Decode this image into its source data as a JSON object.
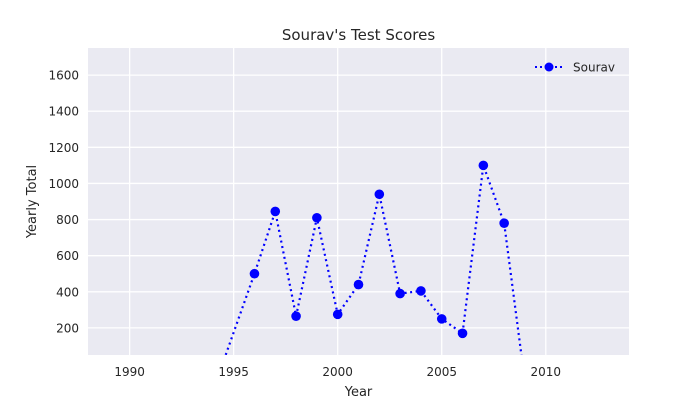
{
  "chart_data": {
    "type": "line",
    "title": "Sourav's Test Scores",
    "xlabel": "Year",
    "ylabel": "Yearly Total",
    "xlim": [
      1988,
      2014
    ],
    "ylim": [
      50,
      1750
    ],
    "xticks": [
      1990,
      1995,
      2000,
      2005,
      2010
    ],
    "yticks": [
      200,
      400,
      600,
      800,
      1000,
      1200,
      1400,
      1600
    ],
    "grid": true,
    "legend_position": "top-right",
    "series": [
      {
        "name": "Sourav",
        "color": "#0000ff",
        "line_style": "dotted",
        "marker": "circle",
        "x": [
          1994,
          1996,
          1997,
          1998,
          1999,
          2000,
          2001,
          2002,
          2003,
          2004,
          2005,
          2006,
          2007,
          2008,
          2009
        ],
        "y": [
          -150,
          500,
          845,
          265,
          810,
          275,
          440,
          940,
          390,
          405,
          250,
          170,
          1100,
          780,
          -100
        ]
      }
    ]
  }
}
